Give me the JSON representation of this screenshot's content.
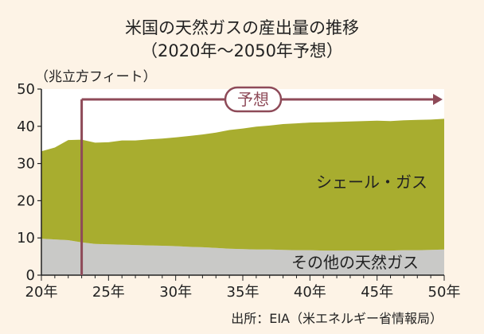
{
  "chart_data": {
    "type": "area",
    "title": "米国の天然ガスの産出量の推移",
    "subtitle": "（2020年〜2050年予想）",
    "ylabel": "（兆立方フィート）",
    "xlabel": "",
    "x": [
      2020,
      2021,
      2022,
      2023,
      2024,
      2025,
      2026,
      2027,
      2028,
      2029,
      2030,
      2031,
      2032,
      2033,
      2034,
      2035,
      2036,
      2037,
      2038,
      2039,
      2040,
      2041,
      2042,
      2043,
      2044,
      2045,
      2046,
      2047,
      2048,
      2049,
      2050
    ],
    "xlim": [
      2020,
      2050
    ],
    "ylim": [
      0,
      50
    ],
    "xticks": [
      2020,
      2025,
      2030,
      2035,
      2040,
      2045,
      2050
    ],
    "xtick_labels": [
      "20年",
      "25年",
      "30年",
      "35年",
      "40年",
      "45年",
      "50年"
    ],
    "yticks": [
      0,
      10,
      20,
      30,
      40,
      50
    ],
    "ytick_labels": [
      "0",
      "10",
      "20",
      "30",
      "40",
      "50"
    ],
    "series": [
      {
        "name": "その他の天然ガス",
        "color": "#c9c9c7",
        "values": [
          9.8,
          9.6,
          9.4,
          8.8,
          8.4,
          8.3,
          8.2,
          8.1,
          8.0,
          7.9,
          7.8,
          7.6,
          7.5,
          7.3,
          7.1,
          7.0,
          6.9,
          6.9,
          6.8,
          6.7,
          6.7,
          6.6,
          6.6,
          6.6,
          6.6,
          6.6,
          6.6,
          6.7,
          6.7,
          6.8,
          6.9
        ]
      },
      {
        "name": "シェール・ガス",
        "color": "#a8ad2f",
        "values": [
          23.5,
          24.7,
          26.9,
          27.6,
          27.2,
          27.4,
          28.0,
          28.1,
          28.5,
          28.8,
          29.2,
          29.8,
          30.3,
          31.0,
          31.9,
          32.4,
          33.0,
          33.3,
          33.8,
          34.1,
          34.3,
          34.5,
          34.6,
          34.7,
          34.8,
          34.9,
          34.8,
          34.9,
          35.0,
          35.0,
          35.1
        ]
      }
    ],
    "forecast": {
      "label": "予想",
      "start": 2023
    },
    "plot_background": "#ffffff",
    "forecast_color": "#8e4a58",
    "source": "出所：EIA（米エネルギー省情報局）"
  }
}
